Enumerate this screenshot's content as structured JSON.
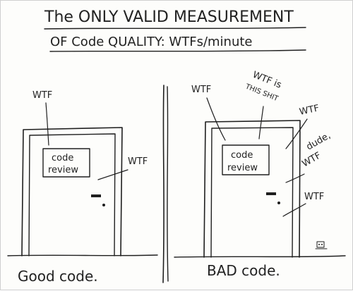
{
  "title": {
    "line1": "The ONLY VALID MEASUREMENT",
    "line2": "OF Code QUALITY: WTFs/minute"
  },
  "left_panel": {
    "sign_line1": "code",
    "sign_line2": "review",
    "wtf_top": "WTF",
    "wtf_side": "WTF",
    "caption": "Good code."
  },
  "right_panel": {
    "sign_line1": "code",
    "sign_line2": "review",
    "wtf_top_left": "WTF",
    "wtf_is": "WTF is",
    "this_shit": "THIS SHIT",
    "wtf_top_right": "WTF",
    "dude": "dude,",
    "dude_wtf": "WTF",
    "wtf_bottom": "WTF",
    "caption": "BAD code."
  },
  "colors": {
    "ink": "#1f1f1f",
    "paper": "#fdfdfb"
  }
}
